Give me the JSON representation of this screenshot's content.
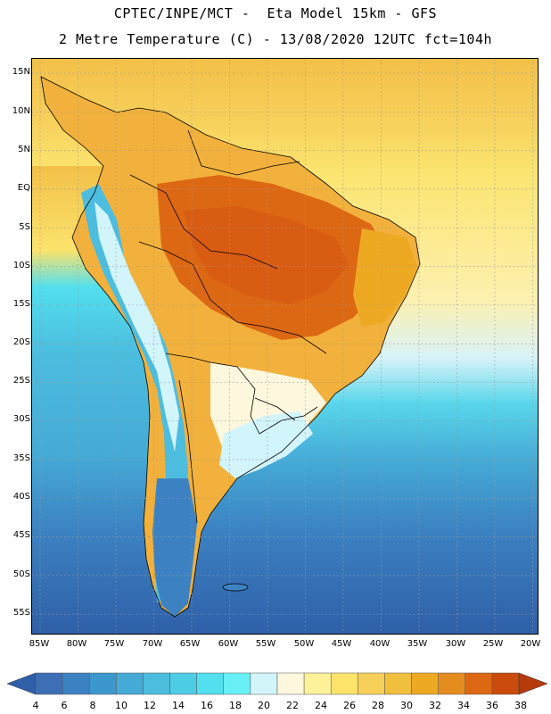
{
  "title_line1": "CPTEC/INPE/MCT -  Eta Model 15km - GFS",
  "title_line2": "2 Metre Temperature (C) - 13/08/2020 12UTC fct=104h",
  "map": {
    "variable": "2 Metre Temperature",
    "units": "C",
    "model": "Eta Model 15km - GFS",
    "lat_labels": [
      "15N",
      "10N",
      "5N",
      "EQ",
      "5S",
      "10S",
      "15S",
      "20S",
      "25S",
      "30S",
      "35S",
      "40S",
      "45S",
      "50S",
      "55S"
    ],
    "lon_labels": [
      "85W",
      "80W",
      "75W",
      "70W",
      "65W",
      "60W",
      "55W",
      "50W",
      "45W",
      "40W",
      "35W",
      "30W",
      "25W",
      "20W"
    ]
  },
  "colorbar": {
    "labels": [
      "4",
      "6",
      "8",
      "10",
      "12",
      "14",
      "16",
      "18",
      "20",
      "22",
      "24",
      "26",
      "28",
      "30",
      "32",
      "34",
      "36",
      "38"
    ],
    "colors": [
      "#3d6fb4",
      "#3c82c2",
      "#3c97cc",
      "#45aad6",
      "#4cbddf",
      "#4dcce6",
      "#52dfee",
      "#68f0f6",
      "#d2f4fb",
      "#fdf7dd",
      "#fdf19a",
      "#fbe36c",
      "#f7d05a",
      "#f1bf3e",
      "#eea923",
      "#e58c1f",
      "#dd6814",
      "#ca4b0c"
    ],
    "low_color": "#2f5fa8",
    "high_color": "#b43a0a"
  },
  "colors": {
    "ocean_south": "#2f63ad",
    "ocean_mid": "#4cbddf",
    "ocean_tropical": "#f3c048"
  }
}
